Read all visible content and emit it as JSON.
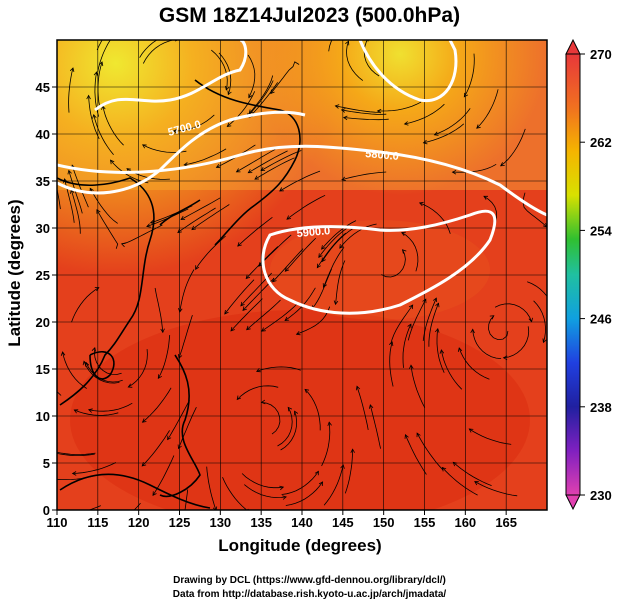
{
  "title": "GSM 18Z14Jul2023 (500.0hPa)",
  "x_axis": {
    "label": "Longitude (degrees)",
    "ticks": [
      "110",
      "115",
      "120",
      "125",
      "130",
      "135",
      "140",
      "145",
      "150",
      "155",
      "160",
      "165"
    ]
  },
  "y_axis": {
    "label": "Latitude  (degrees)",
    "ticks": [
      "0",
      "5",
      "10",
      "15",
      "20",
      "25",
      "30",
      "35",
      "40",
      "45"
    ]
  },
  "colorbar": {
    "ticks": [
      "270",
      "262",
      "254",
      "246",
      "238",
      "230"
    ],
    "range": [
      230,
      270
    ]
  },
  "contours": [
    {
      "label": "5700.0"
    },
    {
      "label": "5800.0"
    },
    {
      "label": "5900.0"
    }
  ],
  "credits": {
    "line1": "Drawing by DCL (https://www.gfd-dennou.org/library/dcl/)",
    "line2": "Data from http://database.rish.kyoto-u.ac.jp/arch/jmadata/"
  },
  "colors": {
    "warm": "#e8401c",
    "hot": "#dd3010",
    "cool": "#f5a020",
    "coldest": "#e8f030",
    "contour": "#ffffff"
  },
  "map": {
    "lon_range": [
      110,
      170
    ],
    "lat_range": [
      0,
      50
    ]
  }
}
